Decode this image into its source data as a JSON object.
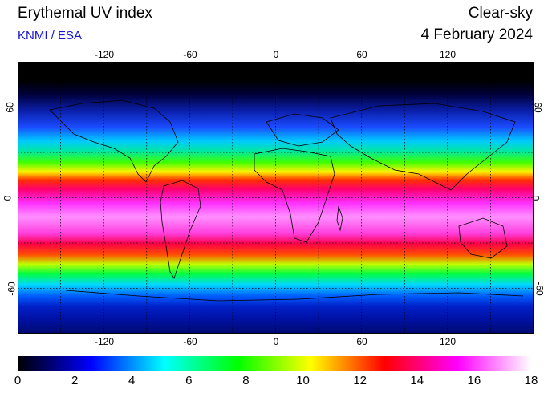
{
  "header": {
    "title": "Erythemal UV index",
    "source": "KNMI / ESA",
    "mode": "Clear-sky",
    "date": "4 February 2024"
  },
  "map": {
    "lon_ticks": [
      "-120",
      "-60",
      "0",
      "60",
      "120"
    ],
    "lon_values": [
      -120,
      -60,
      0,
      60,
      120
    ],
    "lat_ticks": [
      "60",
      "0",
      "-60"
    ],
    "lat_values": [
      60,
      0,
      -60
    ],
    "lon_range": [
      -180,
      180
    ],
    "lat_range": [
      -90,
      90
    ],
    "graticule": "dotted 30-degree grid"
  },
  "colorbar": {
    "labels": [
      "0",
      "2",
      "4",
      "6",
      "8",
      "10",
      "12",
      "14",
      "16",
      "18"
    ],
    "min": 0,
    "max": 18,
    "colors": [
      "#000000",
      "#0000ff",
      "#00ffff",
      "#00ff00",
      "#ffff00",
      "#ff0000",
      "#ff00ff",
      "#ffffff"
    ]
  }
}
